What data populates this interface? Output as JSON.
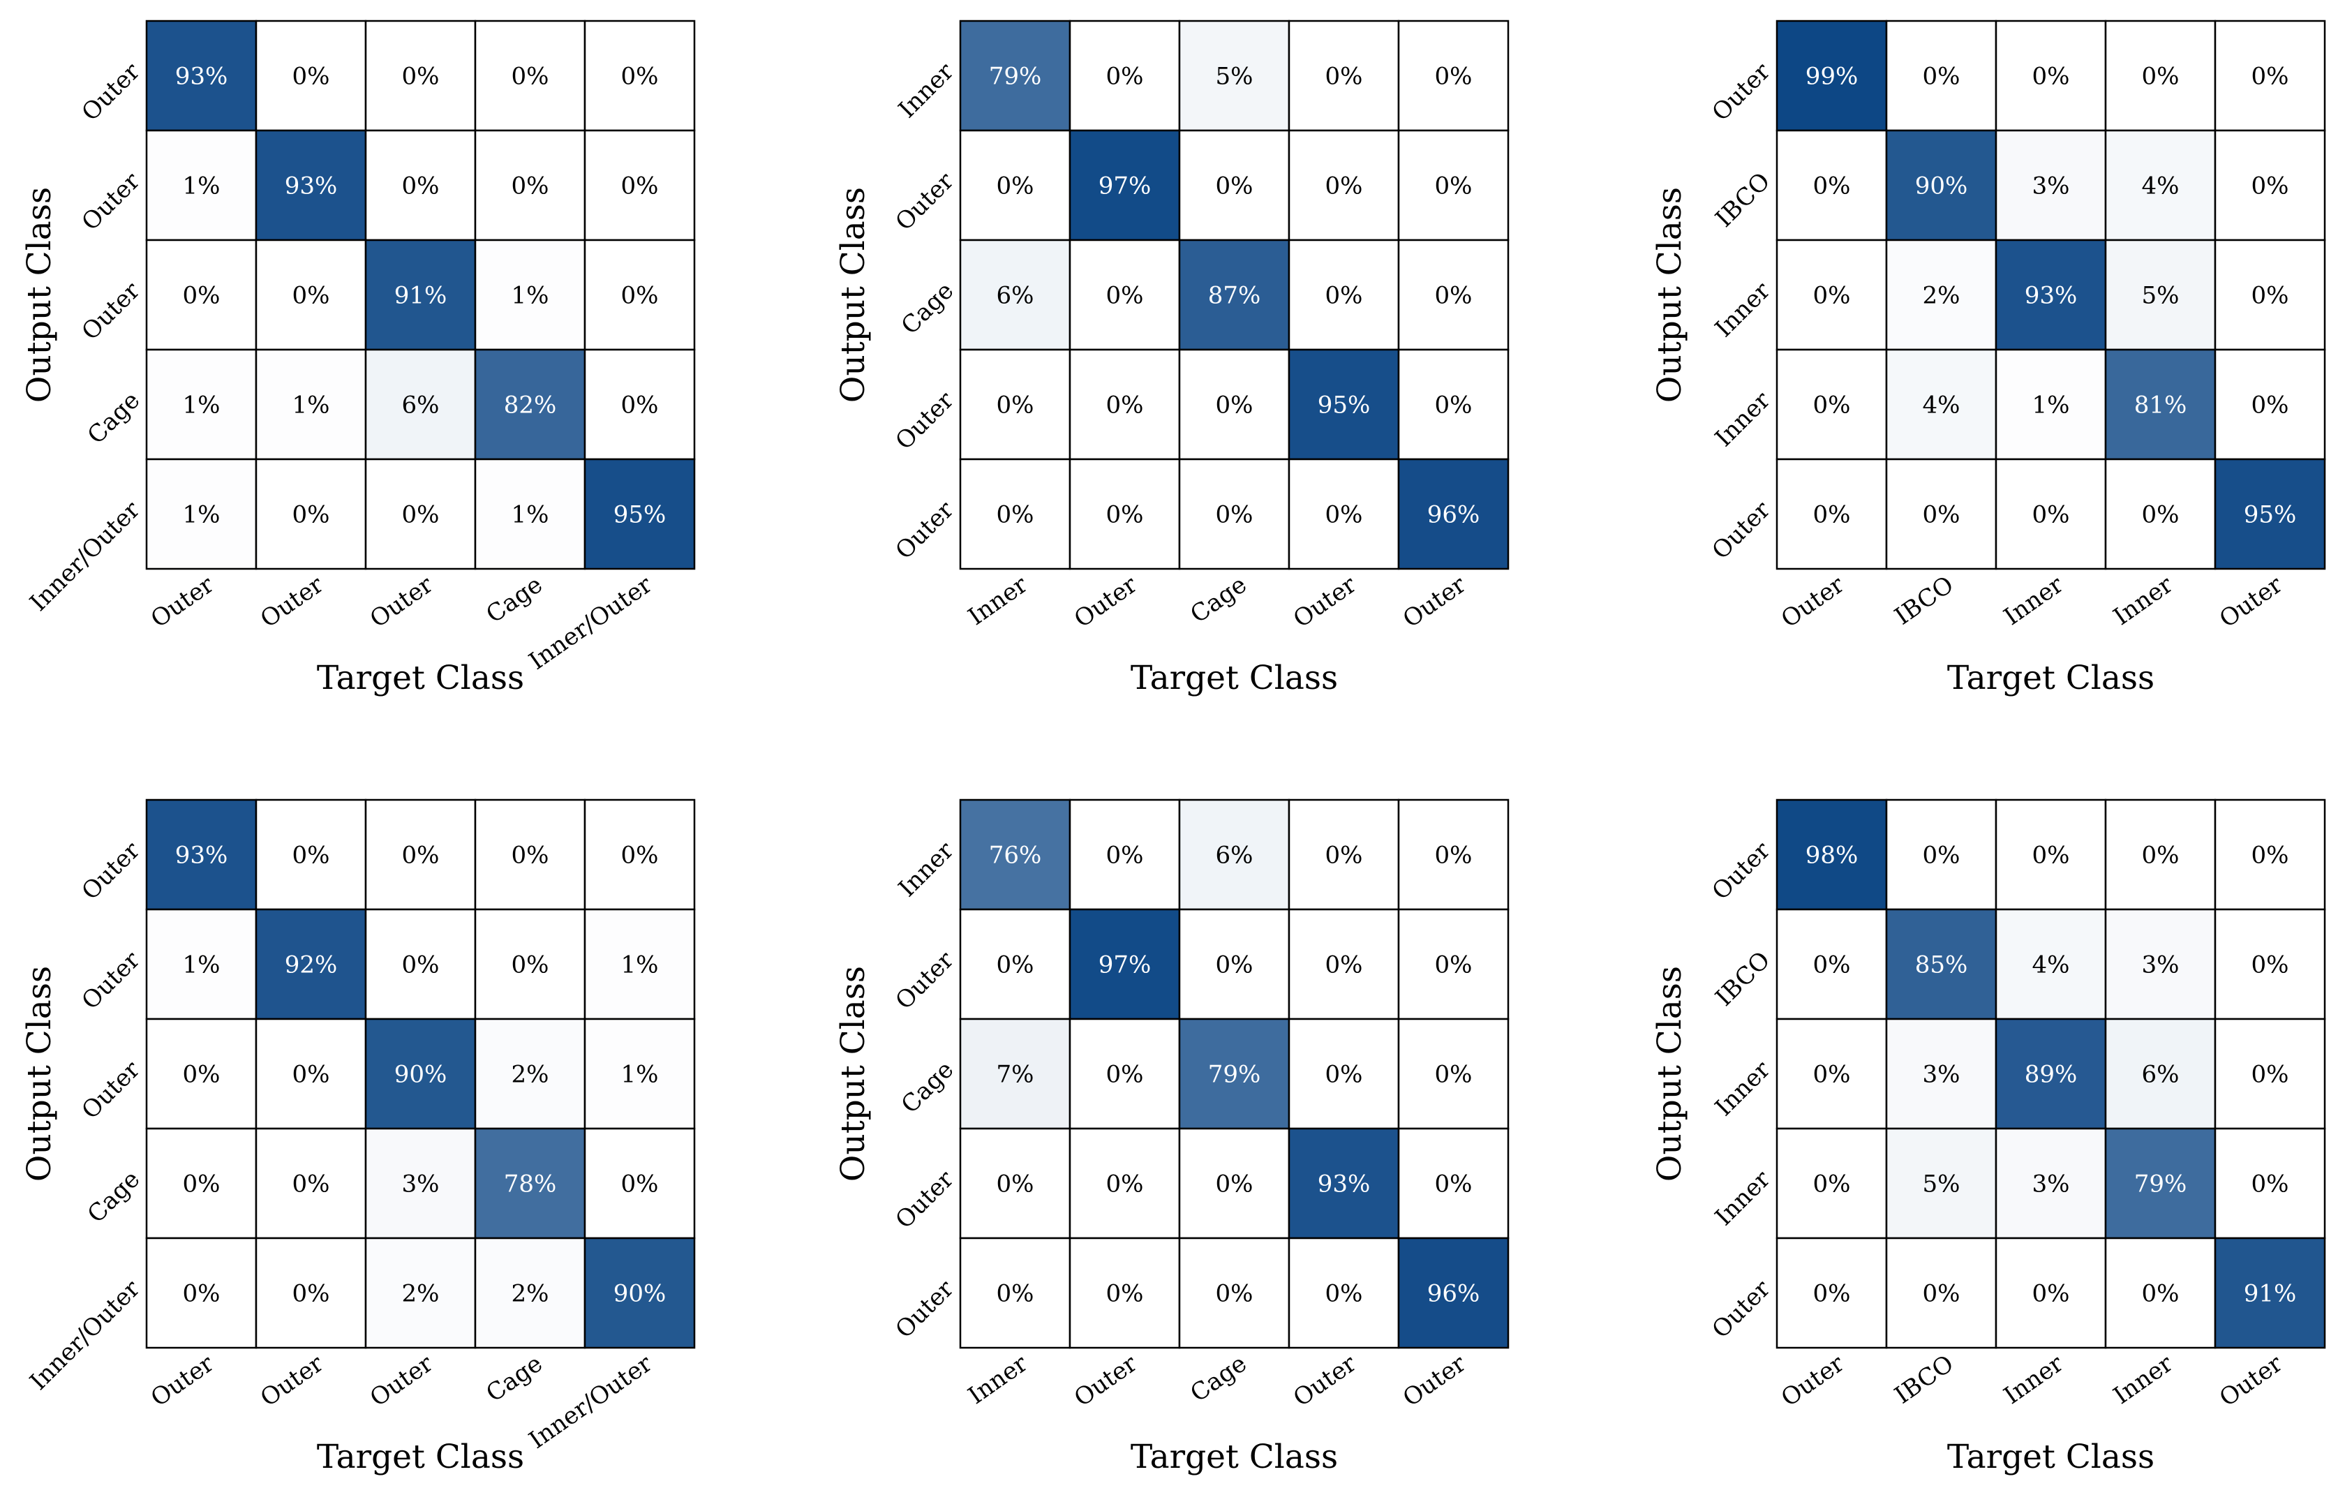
{
  "chart_data": [
    {
      "type": "heatmap",
      "xlabel": "Target Class",
      "ylabel": "Output Class",
      "x_labels": [
        "Outer",
        "Outer",
        "Outer",
        "Cage",
        "Inner/Outer"
      ],
      "y_labels": [
        "Outer",
        "Outer",
        "Outer",
        "Cage",
        "Inner/Outer"
      ],
      "values": [
        [
          93,
          0,
          0,
          0,
          0
        ],
        [
          1,
          93,
          0,
          0,
          0
        ],
        [
          0,
          0,
          91,
          1,
          0
        ],
        [
          1,
          1,
          6,
          82,
          0
        ],
        [
          1,
          0,
          0,
          1,
          95
        ]
      ],
      "value_format": "percent"
    },
    {
      "type": "heatmap",
      "xlabel": "Target Class",
      "ylabel": "Output Class",
      "x_labels": [
        "Inner",
        "Outer",
        "Cage",
        "Outer",
        "Outer"
      ],
      "y_labels": [
        "Inner",
        "Outer",
        "Cage",
        "Outer",
        "Outer"
      ],
      "values": [
        [
          79,
          0,
          5,
          0,
          0
        ],
        [
          0,
          97,
          0,
          0,
          0
        ],
        [
          6,
          0,
          87,
          0,
          0
        ],
        [
          0,
          0,
          0,
          95,
          0
        ],
        [
          0,
          0,
          0,
          0,
          96
        ]
      ],
      "value_format": "percent"
    },
    {
      "type": "heatmap",
      "xlabel": "Target Class",
      "ylabel": "Output Class",
      "x_labels": [
        "Outer",
        "IBCO",
        "Inner",
        "Inner",
        "Outer"
      ],
      "y_labels": [
        "Outer",
        "IBCO",
        "Inner",
        "Inner",
        "Outer"
      ],
      "values": [
        [
          99,
          0,
          0,
          0,
          0
        ],
        [
          0,
          90,
          3,
          4,
          0
        ],
        [
          0,
          2,
          93,
          5,
          0
        ],
        [
          0,
          4,
          1,
          81,
          0
        ],
        [
          0,
          0,
          0,
          0,
          95
        ]
      ],
      "value_format": "percent"
    },
    {
      "type": "heatmap",
      "xlabel": "Target Class",
      "ylabel": "Output Class",
      "x_labels": [
        "Outer",
        "Outer",
        "Outer",
        "Cage",
        "Inner/Outer"
      ],
      "y_labels": [
        "Outer",
        "Outer",
        "Outer",
        "Cage",
        "Inner/Outer"
      ],
      "values": [
        [
          93,
          0,
          0,
          0,
          0
        ],
        [
          1,
          92,
          0,
          0,
          1
        ],
        [
          0,
          0,
          90,
          2,
          1
        ],
        [
          0,
          0,
          3,
          78,
          0
        ],
        [
          0,
          0,
          2,
          2,
          90
        ]
      ],
      "value_format": "percent"
    },
    {
      "type": "heatmap",
      "xlabel": "Target Class",
      "ylabel": "Output Class",
      "x_labels": [
        "Inner",
        "Outer",
        "Cage",
        "Outer",
        "Outer"
      ],
      "y_labels": [
        "Inner",
        "Outer",
        "Cage",
        "Outer",
        "Outer"
      ],
      "values": [
        [
          76,
          0,
          6,
          0,
          0
        ],
        [
          0,
          97,
          0,
          0,
          0
        ],
        [
          7,
          0,
          79,
          0,
          0
        ],
        [
          0,
          0,
          0,
          93,
          0
        ],
        [
          0,
          0,
          0,
          0,
          96
        ]
      ],
      "value_format": "percent"
    },
    {
      "type": "heatmap",
      "xlabel": "Target Class",
      "ylabel": "Output Class",
      "x_labels": [
        "Outer",
        "IBCO",
        "Inner",
        "Inner",
        "Outer"
      ],
      "y_labels": [
        "Outer",
        "IBCO",
        "Inner",
        "Inner",
        "Outer"
      ],
      "values": [
        [
          98,
          0,
          0,
          0,
          0
        ],
        [
          0,
          85,
          4,
          3,
          0
        ],
        [
          0,
          3,
          89,
          6,
          0
        ],
        [
          0,
          5,
          3,
          79,
          0
        ],
        [
          0,
          0,
          0,
          0,
          91
        ]
      ],
      "value_format": "percent"
    }
  ],
  "colors": {
    "low": "#ffffff",
    "high": "#0b4584",
    "grid": "#000000",
    "text_dark": "#000000",
    "text_light": "#ffffff"
  }
}
